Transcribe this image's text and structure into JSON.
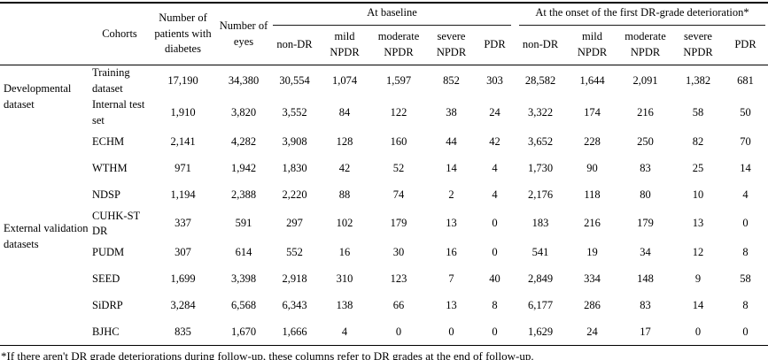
{
  "table": {
    "column_headers": {
      "cohorts": "Cohorts",
      "patients": "Number of patients with diabetes",
      "eyes": "Number of eyes",
      "baseline_group": "At baseline",
      "onset_group": "At the onset of the first DR-grade deterioration*",
      "grades": [
        "non-DR",
        "mild NPDR",
        "moderate NPDR",
        "severe NPDR",
        "PDR"
      ]
    },
    "row_groups": [
      {
        "label": "Developmental dataset"
      },
      {
        "label": "External validation datasets"
      }
    ],
    "rows": [
      {
        "cohort": "Training dataset",
        "patients": "17,190",
        "eyes": "34,380",
        "baseline": [
          "30,554",
          "1,074",
          "1,597",
          "852",
          "303"
        ],
        "onset": [
          "28,582",
          "1,644",
          "2,091",
          "1,382",
          "681"
        ]
      },
      {
        "cohort": "Internal test set",
        "patients": "1,910",
        "eyes": "3,820",
        "baseline": [
          "3,552",
          "84",
          "122",
          "38",
          "24"
        ],
        "onset": [
          "3,322",
          "174",
          "216",
          "58",
          "50"
        ]
      },
      {
        "cohort": "ECHM",
        "patients": "2,141",
        "eyes": "4,282",
        "baseline": [
          "3,908",
          "128",
          "160",
          "44",
          "42"
        ],
        "onset": [
          "3,652",
          "228",
          "250",
          "82",
          "70"
        ]
      },
      {
        "cohort": "WTHM",
        "patients": "971",
        "eyes": "1,942",
        "baseline": [
          "1,830",
          "42",
          "52",
          "14",
          "4"
        ],
        "onset": [
          "1,730",
          "90",
          "83",
          "25",
          "14"
        ]
      },
      {
        "cohort": "NDSP",
        "patients": "1,194",
        "eyes": "2,388",
        "baseline": [
          "2,220",
          "88",
          "74",
          "2",
          "4"
        ],
        "onset": [
          "2,176",
          "118",
          "80",
          "10",
          "4"
        ]
      },
      {
        "cohort": "CUHK-ST DR",
        "patients": "337",
        "eyes": "591",
        "baseline": [
          "297",
          "102",
          "179",
          "13",
          "0"
        ],
        "onset": [
          "183",
          "216",
          "179",
          "13",
          "0"
        ]
      },
      {
        "cohort": "PUDM",
        "patients": "307",
        "eyes": "614",
        "baseline": [
          "552",
          "16",
          "30",
          "16",
          "0"
        ],
        "onset": [
          "541",
          "19",
          "34",
          "12",
          "8"
        ]
      },
      {
        "cohort": "SEED",
        "patients": "1,699",
        "eyes": "3,398",
        "baseline": [
          "2,918",
          "310",
          "123",
          "7",
          "40"
        ],
        "onset": [
          "2,849",
          "334",
          "148",
          "9",
          "58"
        ]
      },
      {
        "cohort": "SiDRP",
        "patients": "3,284",
        "eyes": "6,568",
        "baseline": [
          "6,343",
          "138",
          "66",
          "13",
          "8"
        ],
        "onset": [
          "6,177",
          "286",
          "83",
          "14",
          "8"
        ]
      },
      {
        "cohort": "BJHC",
        "patients": "835",
        "eyes": "1,670",
        "baseline": [
          "1,666",
          "4",
          "0",
          "0",
          "0"
        ],
        "onset": [
          "1,629",
          "24",
          "17",
          "0",
          "0"
        ]
      }
    ],
    "footnote": "*If there aren't DR grade deteriorations during follow-up, these columns refer to DR grades at the end of follow-up."
  }
}
